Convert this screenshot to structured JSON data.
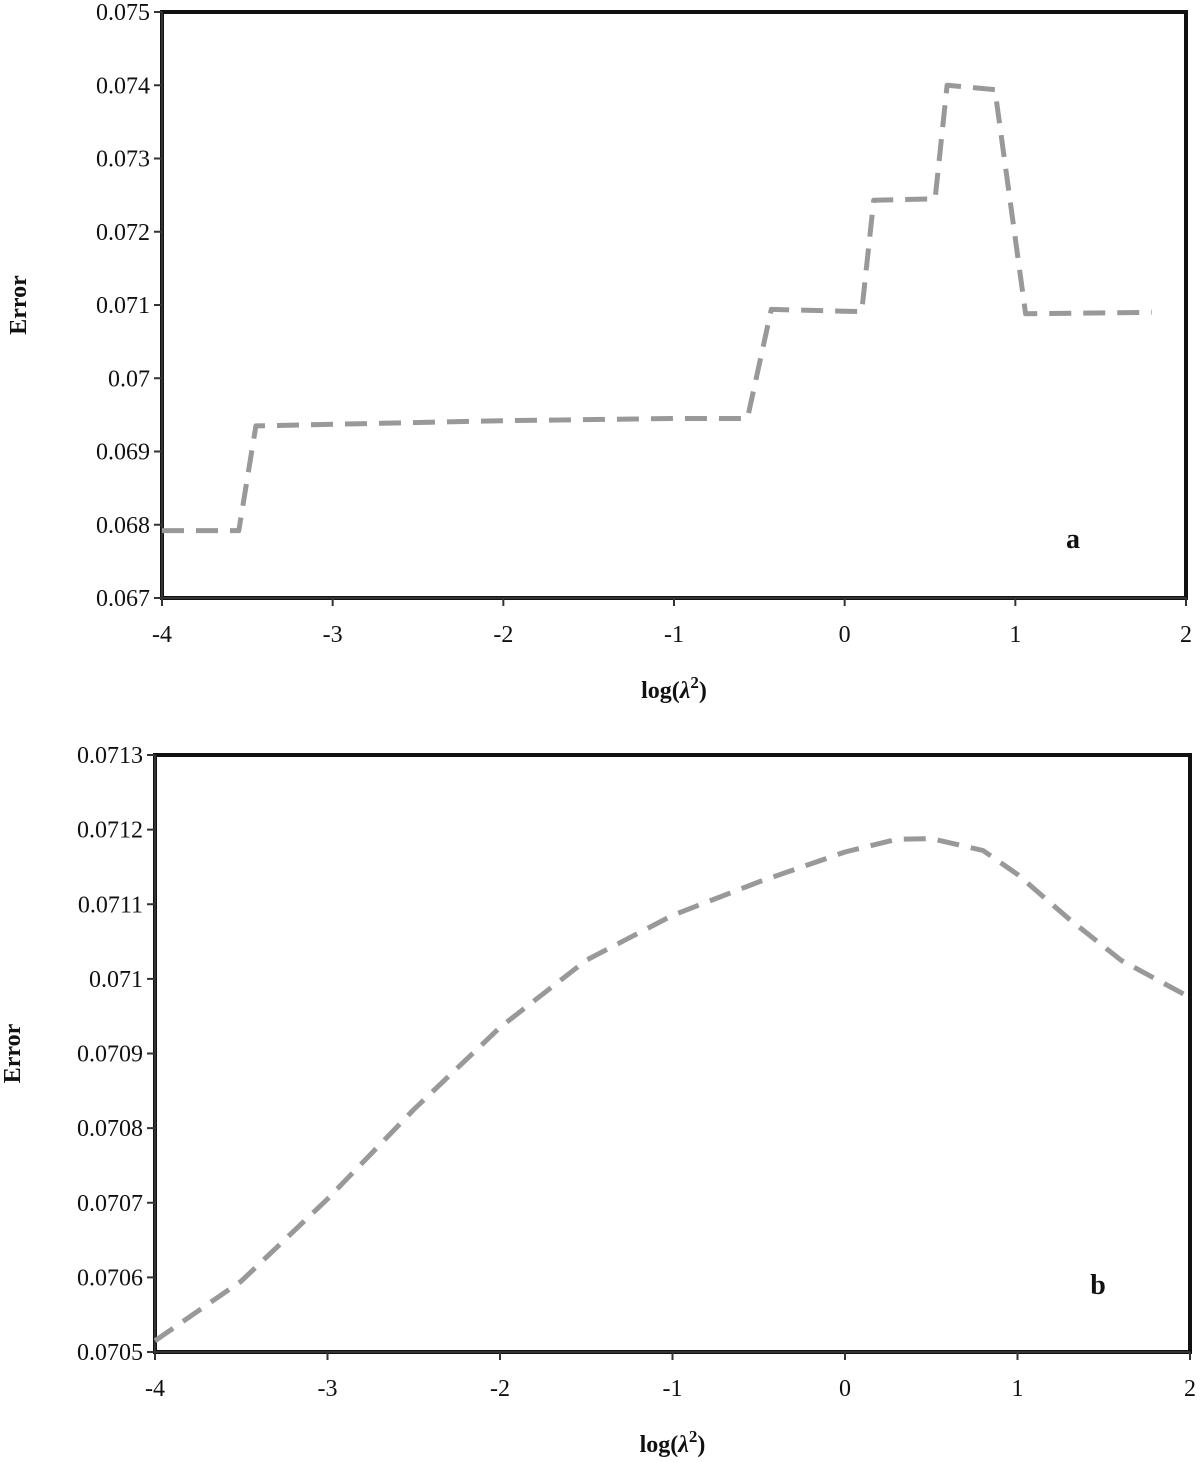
{
  "chart_data": [
    {
      "type": "line",
      "panel_label": "a",
      "xlabel_main": "log(",
      "xlabel_var": "λ",
      "xlabel_sup": "2",
      "xlabel_close": ")",
      "ylabel": "Error",
      "xlim": [
        -4,
        2
      ],
      "ylim": [
        0.067,
        0.075
      ],
      "xticks": [
        "-4",
        "-3",
        "-2",
        "-1",
        "0",
        "1",
        "2"
      ],
      "xtick_values": [
        -4,
        -3,
        -2,
        -1,
        0,
        1,
        2
      ],
      "yticks": [
        "0.067",
        "0.068",
        "0.069",
        "0.07",
        "0.071",
        "0.072",
        "0.073",
        "0.074",
        "0.075"
      ],
      "ytick_values": [
        0.067,
        0.068,
        0.069,
        0.07,
        0.071,
        0.072,
        0.073,
        0.074,
        0.075
      ],
      "line_color": "#999999",
      "line_style": "dashed",
      "series": [
        {
          "name": "Error",
          "x": [
            -4.0,
            -3.55,
            -3.45,
            -2.0,
            -1.0,
            -0.57,
            -0.43,
            0.1,
            0.17,
            0.53,
            0.6,
            0.88,
            1.06,
            1.8
          ],
          "y": [
            0.06792,
            0.06792,
            0.06935,
            0.06942,
            0.06945,
            0.06945,
            0.07094,
            0.07091,
            0.07243,
            0.07245,
            0.074,
            0.07394,
            0.07088,
            0.0709
          ]
        }
      ]
    },
    {
      "type": "line",
      "panel_label": "b",
      "xlabel_main": "log(",
      "xlabel_var": "λ",
      "xlabel_sup": "2",
      "xlabel_close": ")",
      "ylabel": "Error",
      "xlim": [
        -4,
        2
      ],
      "ylim": [
        0.0705,
        0.0713
      ],
      "xticks": [
        "-4",
        "-3",
        "-2",
        "-1",
        "0",
        "1",
        "2"
      ],
      "xtick_values": [
        -4,
        -3,
        -2,
        -1,
        0,
        1,
        2
      ],
      "yticks": [
        "0.0705",
        "0.0706",
        "0.0707",
        "0.0708",
        "0.0709",
        "0.071",
        "0.0711",
        "0.0712",
        "0.0713"
      ],
      "ytick_values": [
        0.0705,
        0.0706,
        0.0707,
        0.0708,
        0.0709,
        0.071,
        0.0711,
        0.0712,
        0.0713
      ],
      "line_color": "#999999",
      "line_style": "dashed",
      "series": [
        {
          "name": "Error",
          "x": [
            -4.0,
            -3.5,
            -3.0,
            -2.5,
            -2.0,
            -1.5,
            -1.0,
            -0.5,
            0.0,
            0.3,
            0.5,
            0.8,
            1.0,
            1.3,
            1.6,
            2.0
          ],
          "y": [
            0.070515,
            0.070595,
            0.070705,
            0.070825,
            0.070935,
            0.071025,
            0.071085,
            0.07113,
            0.07117,
            0.071187,
            0.071188,
            0.071172,
            0.07114,
            0.07108,
            0.071025,
            0.070975
          ]
        }
      ]
    }
  ]
}
